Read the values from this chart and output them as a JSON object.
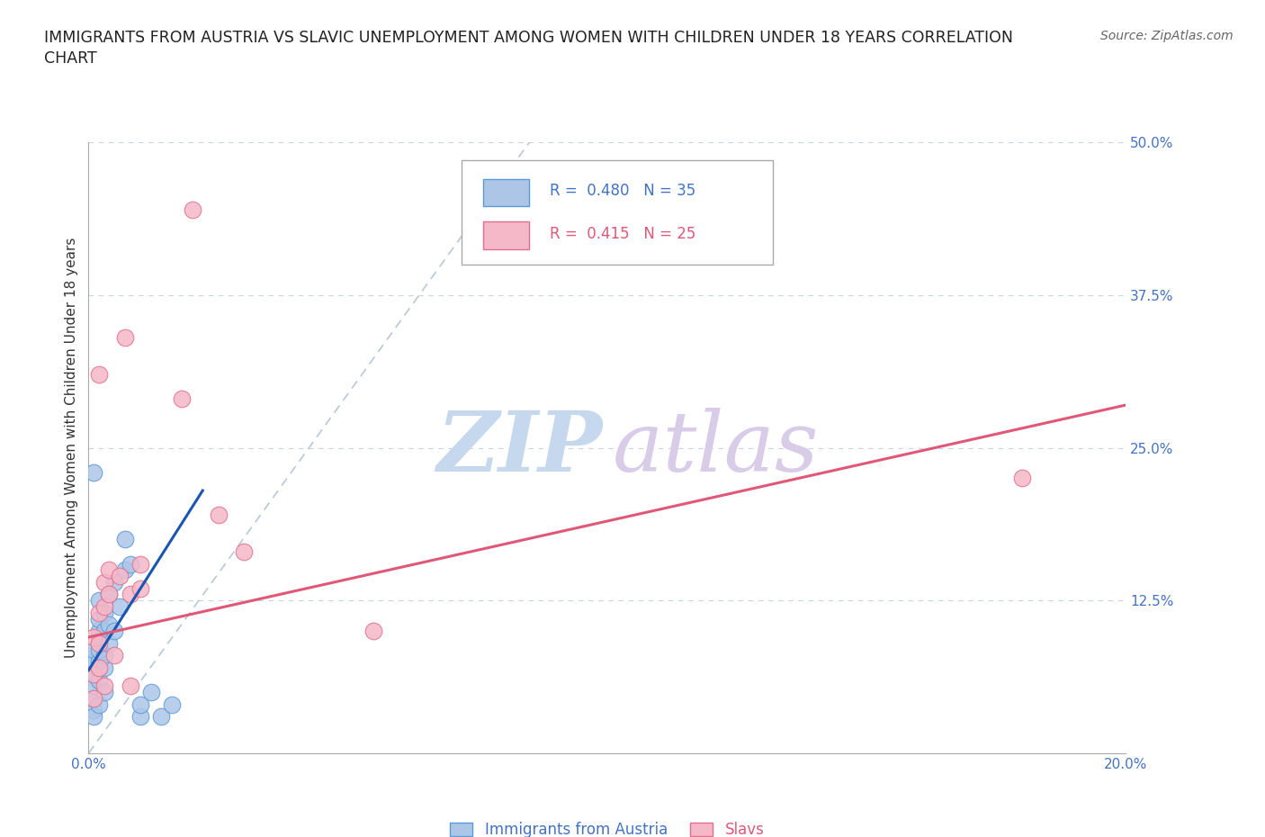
{
  "title_line1": "IMMIGRANTS FROM AUSTRIA VS SLAVIC UNEMPLOYMENT AMONG WOMEN WITH CHILDREN UNDER 18 YEARS CORRELATION",
  "title_line2": "CHART",
  "source_text": "Source: ZipAtlas.com",
  "ylabel": "Unemployment Among Women with Children Under 18 years",
  "xlim": [
    0.0,
    0.2
  ],
  "ylim": [
    0.0,
    0.5
  ],
  "yticks": [
    0.0,
    0.125,
    0.25,
    0.375,
    0.5
  ],
  "ytick_labels": [
    "",
    "12.5%",
    "25.0%",
    "37.5%",
    "50.0%"
  ],
  "xticks": [
    0.0,
    0.05,
    0.1,
    0.15,
    0.2
  ],
  "xtick_labels": [
    "0.0%",
    "",
    "",
    "",
    "20.0%"
  ],
  "austria_R": 0.48,
  "austria_N": 35,
  "slavs_R": 0.415,
  "slavs_N": 25,
  "austria_color": "#adc6e8",
  "austria_edge_color": "#5b9bd5",
  "slavs_color": "#f5b8c8",
  "slavs_edge_color": "#e07090",
  "austria_line_color": "#1a56b0",
  "slavs_line_color": "#e05878",
  "diagonal_line_color": "#b8c8d8",
  "tick_label_color": "#4472c4",
  "legend_label_color_austria": "#4472c4",
  "legend_label_color_slavs": "#e05878",
  "austria_scatter_x": [
    0.001,
    0.001,
    0.001,
    0.001,
    0.001,
    0.001,
    0.001,
    0.002,
    0.002,
    0.002,
    0.002,
    0.002,
    0.002,
    0.002,
    0.002,
    0.003,
    0.003,
    0.003,
    0.003,
    0.003,
    0.004,
    0.004,
    0.004,
    0.005,
    0.005,
    0.006,
    0.007,
    0.007,
    0.008,
    0.01,
    0.01,
    0.012,
    0.014,
    0.016,
    0.001
  ],
  "austria_scatter_y": [
    0.035,
    0.045,
    0.055,
    0.065,
    0.075,
    0.085,
    0.03,
    0.04,
    0.06,
    0.075,
    0.085,
    0.095,
    0.1,
    0.11,
    0.125,
    0.05,
    0.07,
    0.08,
    0.1,
    0.115,
    0.09,
    0.105,
    0.13,
    0.1,
    0.14,
    0.12,
    0.15,
    0.175,
    0.155,
    0.03,
    0.04,
    0.05,
    0.03,
    0.04,
    0.23
  ],
  "slavs_scatter_x": [
    0.001,
    0.001,
    0.001,
    0.002,
    0.002,
    0.002,
    0.003,
    0.003,
    0.003,
    0.004,
    0.004,
    0.005,
    0.006,
    0.007,
    0.008,
    0.008,
    0.01,
    0.01,
    0.018,
    0.02,
    0.025,
    0.03,
    0.055,
    0.18,
    0.002
  ],
  "slavs_scatter_y": [
    0.045,
    0.065,
    0.095,
    0.07,
    0.09,
    0.115,
    0.055,
    0.12,
    0.14,
    0.13,
    0.15,
    0.08,
    0.145,
    0.34,
    0.055,
    0.13,
    0.135,
    0.155,
    0.29,
    0.445,
    0.195,
    0.165,
    0.1,
    0.225,
    0.31
  ],
  "austria_line_x": [
    0.0,
    0.022
  ],
  "austria_line_y": [
    0.068,
    0.215
  ],
  "slavs_line_x": [
    0.0,
    0.2
  ],
  "slavs_line_y": [
    0.095,
    0.285
  ],
  "diag_line_x": [
    0.0,
    0.085
  ],
  "diag_line_y": [
    0.0,
    0.5
  ]
}
